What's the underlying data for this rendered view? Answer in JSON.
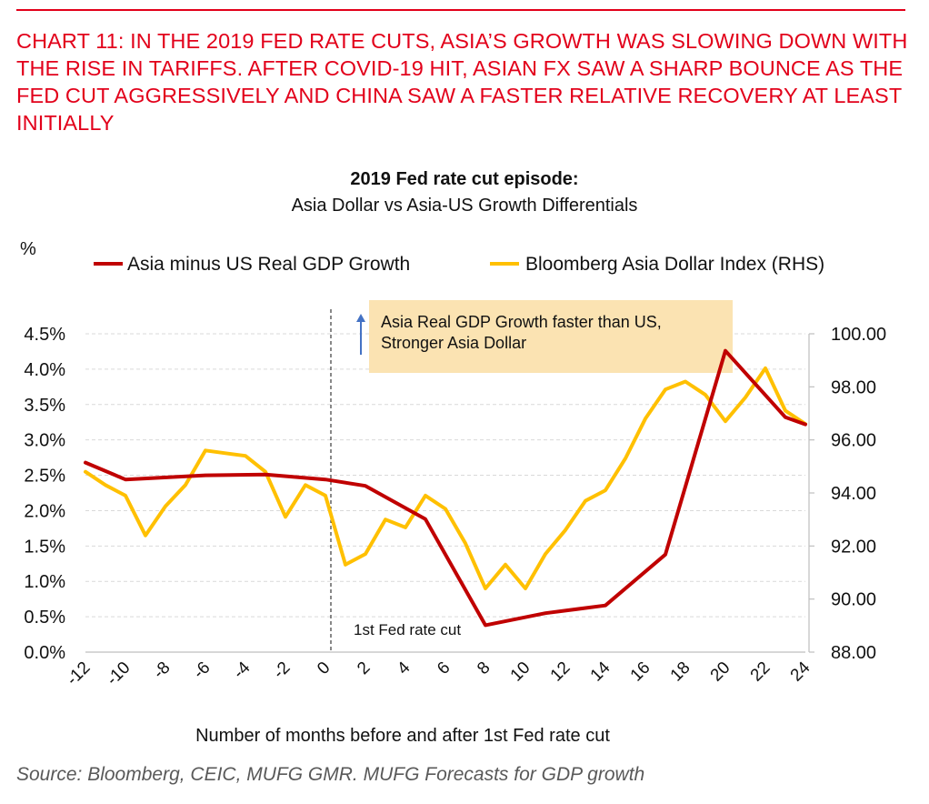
{
  "headline": "CHART 11: IN THE 2019 FED RATE CUTS, ASIA’S GROWTH WAS SLOWING DOWN WITH THE RISE IN TARIFFS. AFTER COVID-19 HIT, ASIAN FX SAW A SHARP BOUNCE AS THE FED CUT AGGRESSIVELY AND CHINA SAW A FASTER RELATIVE RECOVERY AT LEAST INITIALLY",
  "source": "Source: Bloomberg, CEIC, MUFG GMR.  MUFG Forecasts for GDP growth",
  "colors": {
    "accent": "#e2001a",
    "gdp_series": "#c00000",
    "fx_series": "#ffc000",
    "annotation_box": "#fbe3b2",
    "arrow": "#4472c4"
  },
  "chart_data": {
    "type": "line",
    "title": "2019 Fed rate cut episode:",
    "subtitle": "Asia Dollar vs Asia-US Growth Differentials",
    "ylabel": "%",
    "xlabel": "Number of months before and after 1st Fed rate cut",
    "xlim": [
      -12,
      24
    ],
    "ylim": [
      0,
      4.5
    ],
    "y2lim": [
      88,
      100
    ],
    "x_ticks": [
      -12,
      -10,
      -8,
      -6,
      -4,
      -2,
      0,
      2,
      4,
      6,
      8,
      10,
      12,
      14,
      16,
      18,
      20,
      22,
      24
    ],
    "y_ticks": [
      "0.0%",
      "0.5%",
      "1.0%",
      "1.5%",
      "2.0%",
      "2.5%",
      "3.0%",
      "3.5%",
      "4.0%",
      "4.5%"
    ],
    "y2_ticks": [
      "88.00",
      "90.00",
      "92.00",
      "94.00",
      "96.00",
      "98.00",
      "100.00"
    ],
    "grid": true,
    "legend_position": "top",
    "series": [
      {
        "name": "Asia minus US Real GDP Growth",
        "axis": "left",
        "color": "#c00000",
        "x": [
          -12,
          -10,
          -6,
          -3,
          0,
          2,
          5,
          8,
          11,
          14,
          17,
          20,
          23,
          24
        ],
        "y": [
          2.68,
          2.44,
          2.5,
          2.51,
          2.44,
          2.35,
          1.88,
          0.38,
          0.55,
          0.66,
          1.38,
          4.26,
          3.32,
          3.22
        ]
      },
      {
        "name": "Bloomberg Asia Dollar Index (RHS)",
        "axis": "right",
        "color": "#ffc000",
        "x": [
          -12,
          -11,
          -10,
          -9,
          -8,
          -7,
          -6,
          -5,
          -4,
          -3,
          -2,
          -1,
          0,
          1,
          2,
          3,
          4,
          5,
          6,
          7,
          8,
          9,
          10,
          11,
          12,
          13,
          14,
          15,
          16,
          17,
          18,
          19,
          20,
          21,
          22,
          23,
          24
        ],
        "y": [
          94.8,
          94.3,
          93.9,
          92.4,
          93.5,
          94.3,
          95.6,
          95.5,
          95.4,
          94.8,
          93.1,
          94.3,
          93.9,
          91.3,
          91.7,
          93.0,
          92.7,
          93.9,
          93.4,
          92.1,
          90.4,
          91.3,
          90.4,
          91.7,
          92.6,
          93.7,
          94.1,
          95.3,
          96.8,
          97.9,
          98.2,
          97.7,
          96.7,
          97.6,
          98.7,
          97.1,
          96.6
        ]
      }
    ],
    "annotations": {
      "vline_x": 0,
      "vline_label": "1st Fed rate cut",
      "box_text": [
        "Asia Real GDP Growth faster than US,",
        "Stronger Asia Dollar"
      ]
    }
  }
}
